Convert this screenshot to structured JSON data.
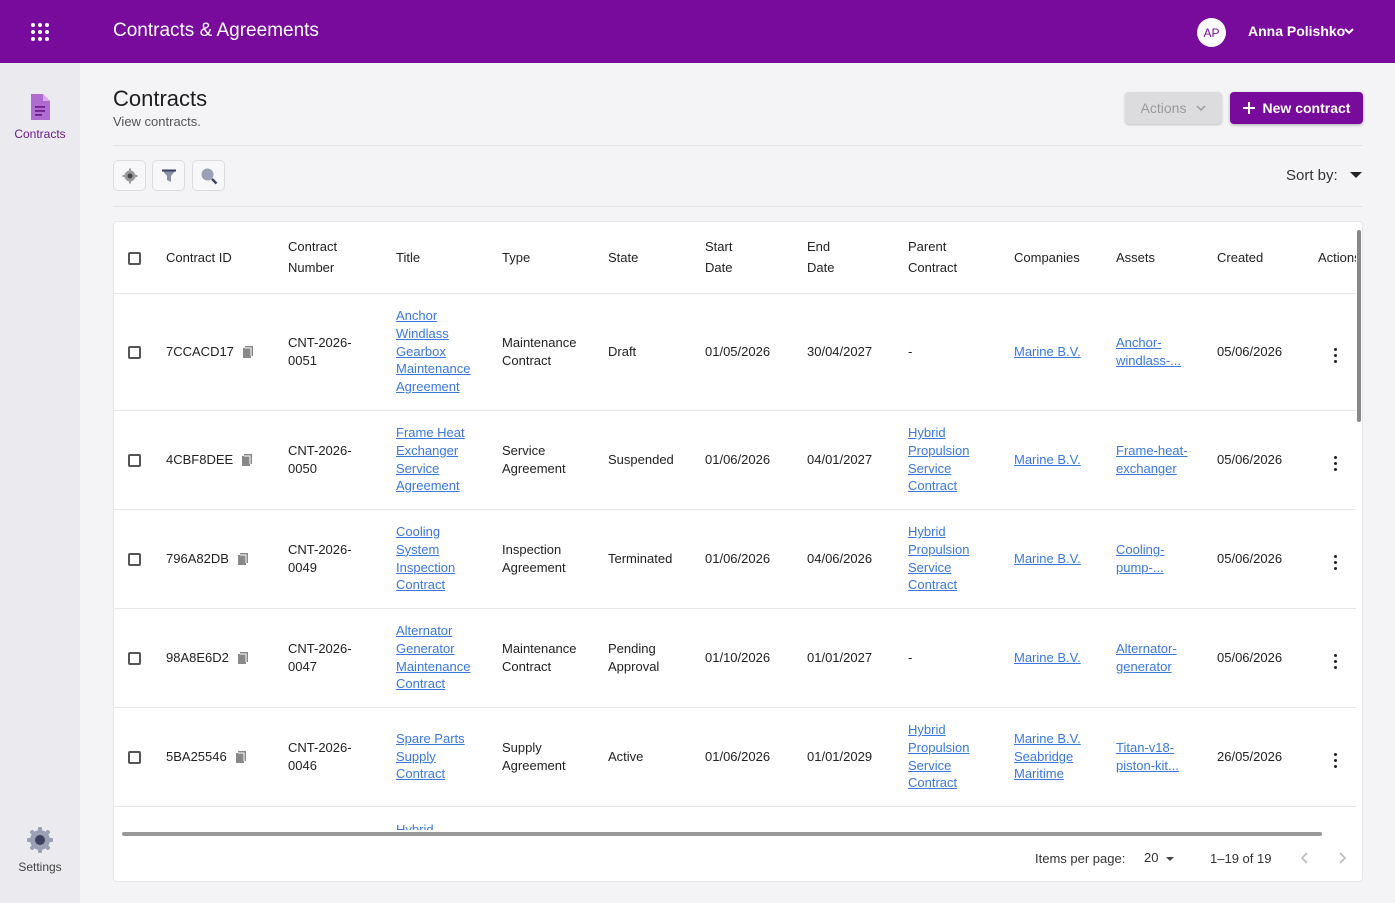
{
  "app": {
    "title": "Contracts & Agreements"
  },
  "user": {
    "initials": "AP",
    "name": "Anna Polishko"
  },
  "sidebar": {
    "items": [
      {
        "label": "Contracts",
        "icon": "document-icon"
      },
      {
        "label": "Settings",
        "icon": "gear-icon"
      }
    ]
  },
  "page": {
    "title": "Contracts",
    "subtitle": "View contracts.",
    "actions_label": "Actions",
    "new_label": "New contract",
    "sort_label": "Sort by:"
  },
  "table": {
    "headers": {
      "contract_id": "Contract ID",
      "contract_number": "Contract Number",
      "title": "Title",
      "type": "Type",
      "state": "State",
      "start_date": "Start Date",
      "end_date": "End Date",
      "parent_contract": "Parent Contract",
      "companies": "Companies",
      "assets": "Assets",
      "created": "Created",
      "actions": "Actions"
    },
    "rows": [
      {
        "id": "7CCACD17",
        "number": "CNT-2026-0051",
        "title": "Anchor Windlass Gearbox Maintenance Agreement",
        "type": "Maintenance Contract",
        "state": "Draft",
        "start": "01/05/2026",
        "end": "30/04/2027",
        "parent": "-",
        "companies": "Marine B.V.",
        "assets": "Anchor-windlass-...",
        "created": "05/06/2026"
      },
      {
        "id": "4CBF8DEE",
        "number": "CNT-2026-0050",
        "title": "Frame Heat Exchanger Service Agreement",
        "type": "Service Agreement",
        "state": "Suspended",
        "start": "01/06/2026",
        "end": "04/01/2027",
        "parent": "Hybrid Propulsion Service Contract",
        "companies": "Marine B.V.",
        "assets": "Frame-heat-exchanger",
        "created": "05/06/2026"
      },
      {
        "id": "796A82DB",
        "number": "CNT-2026-0049",
        "title": "Cooling System Inspection Contract",
        "type": "Inspection Agreement",
        "state": "Terminated",
        "start": "01/06/2026",
        "end": "04/06/2026",
        "parent": "Hybrid Propulsion Service Contract",
        "companies": "Marine B.V.",
        "assets": "Cooling-pump-...",
        "created": "05/06/2026"
      },
      {
        "id": "98A8E6D2",
        "number": "CNT-2026-0047",
        "title": "Alternator Generator Maintenance Contract",
        "type": "Maintenance Contract",
        "state": "Pending Approval",
        "start": "01/10/2026",
        "end": "01/01/2027",
        "parent": "-",
        "companies": "Marine B.V.",
        "assets": "Alternator-generator",
        "created": "05/06/2026"
      },
      {
        "id": "5BA25546",
        "number": "CNT-2026-0046",
        "title": "Spare Parts Supply Contract",
        "type": "Supply Agreement",
        "state": "Active",
        "start": "01/06/2026",
        "end": "01/01/2029",
        "parent": "Hybrid Propulsion Service Contract",
        "companies": "Marine B.V. Seabridge Maritime",
        "assets": "Titan-v18-piston-kit...",
        "created": "26/05/2026"
      }
    ],
    "partial_next": "Hybrid"
  },
  "pagination": {
    "items_per_page_label": "Items per page:",
    "items_per_page": "20",
    "range": "1–19 of 19"
  },
  "colors": {
    "brand": "#780a9c",
    "link": "#3a78e0"
  }
}
